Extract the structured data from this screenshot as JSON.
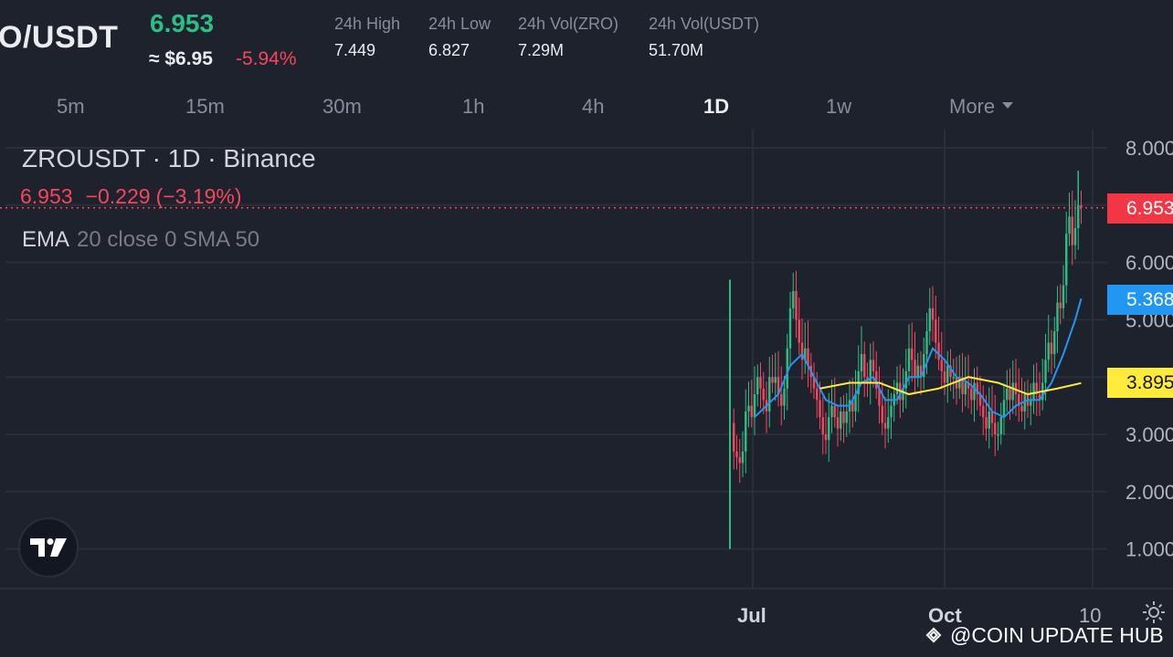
{
  "header": {
    "pair": "O/USDT",
    "last_price": "6.953",
    "usd_approx": "≈ $6.95",
    "change_pct": "-5.94%",
    "stats": [
      {
        "label": "24h High",
        "value": "7.449"
      },
      {
        "label": "24h Low",
        "value": "6.827"
      },
      {
        "label": "24h Vol(ZRO)",
        "value": "7.29M"
      },
      {
        "label": "24h Vol(USDT)",
        "value": "51.70M"
      }
    ]
  },
  "timeframes": {
    "items": [
      "5m",
      "15m",
      "30m",
      "1h",
      "4h",
      "1D",
      "1w",
      "More"
    ],
    "active": "1D"
  },
  "legend": {
    "title": "ZROUSDT · 1D · Binance",
    "price": "6.953",
    "change": "−0.229",
    "change_pct": "(−3.19%)",
    "indicator_name": "EMA",
    "indicator_args": "20 close 0 SMA 50"
  },
  "price_tags": {
    "last": "6.953",
    "ema": "5.368",
    "sma": "3.895"
  },
  "watermark": {
    "text": "@COIN UPDATE HUB",
    "icon": "binance-diamond-icon"
  },
  "icons": {
    "logo": "tradingview-logo-icon",
    "settings": "gear-icon"
  },
  "colors": {
    "up": "#2ebd85",
    "down": "#f6465d",
    "ema": "#2196f3",
    "sma": "#ffeb3b",
    "background": "#1e222d"
  },
  "chart_data": {
    "type": "candlestick",
    "symbol": "ZROUSDT",
    "interval": "1D",
    "exchange": "Binance",
    "y_ticks": [
      "8.000",
      "6.000",
      "5.000",
      "3.000",
      "2.000",
      "1.000"
    ],
    "x_ticks": [
      "Jul",
      "Oct",
      "10"
    ],
    "ylim": [
      0.3,
      8.3
    ],
    "grid": true,
    "close_path": [
      [
        0,
        3.2
      ],
      [
        1,
        2.7
      ],
      [
        2,
        2.6
      ],
      [
        3,
        2.5
      ],
      [
        4,
        2.7
      ],
      [
        5,
        3.4
      ],
      [
        6,
        3.5
      ],
      [
        7,
        3.3
      ],
      [
        8,
        3.7
      ],
      [
        9,
        4.0
      ],
      [
        10,
        3.8
      ],
      [
        11,
        3.6
      ],
      [
        12,
        3.4
      ],
      [
        13,
        4.0
      ],
      [
        14,
        3.9
      ],
      [
        15,
        4.0
      ],
      [
        16,
        3.7
      ],
      [
        17,
        3.5
      ],
      [
        18,
        3.8
      ],
      [
        19,
        4.5
      ],
      [
        20,
        5.2
      ],
      [
        21,
        5.5
      ],
      [
        22,
        5.0
      ],
      [
        23,
        4.6
      ],
      [
        24,
        4.3
      ],
      [
        25,
        4.5
      ],
      [
        26,
        4.2
      ],
      [
        27,
        4.0
      ],
      [
        28,
        3.8
      ],
      [
        29,
        3.6
      ],
      [
        30,
        3.3
      ],
      [
        31,
        3.0
      ],
      [
        32,
        2.9
      ],
      [
        33,
        3.3
      ],
      [
        34,
        3.5
      ],
      [
        35,
        3.3
      ],
      [
        36,
        3.1
      ],
      [
        37,
        3.4
      ],
      [
        38,
        3.2
      ],
      [
        39,
        3.4
      ],
      [
        40,
        3.6
      ],
      [
        41,
        3.4
      ],
      [
        42,
        3.7
      ],
      [
        43,
        4.1
      ],
      [
        44,
        4.4
      ],
      [
        45,
        4.0
      ],
      [
        46,
        3.9
      ],
      [
        47,
        4.3
      ],
      [
        48,
        4.1
      ],
      [
        49,
        3.8
      ],
      [
        50,
        3.5
      ],
      [
        51,
        3.2
      ],
      [
        52,
        3.1
      ],
      [
        53,
        3.3
      ],
      [
        54,
        3.5
      ],
      [
        55,
        3.7
      ],
      [
        56,
        3.9
      ],
      [
        57,
        3.6
      ],
      [
        58,
        3.8
      ],
      [
        59,
        4.1
      ],
      [
        60,
        4.5
      ],
      [
        61,
        4.3
      ],
      [
        62,
        4.0
      ],
      [
        63,
        4.2
      ],
      [
        64,
        4.0
      ],
      [
        65,
        4.4
      ],
      [
        66,
        4.8
      ],
      [
        67,
        5.2
      ],
      [
        68,
        5.0
      ],
      [
        69,
        4.6
      ],
      [
        70,
        4.3
      ],
      [
        71,
        4.1
      ],
      [
        72,
        3.9
      ],
      [
        73,
        4.2
      ],
      [
        74,
        4.0
      ],
      [
        75,
        4.0
      ],
      [
        76,
        3.8
      ],
      [
        77,
        4.0
      ],
      [
        78,
        3.7
      ],
      [
        79,
        3.9
      ],
      [
        80,
        3.8
      ],
      [
        81,
        3.6
      ],
      [
        82,
        3.9
      ],
      [
        83,
        3.7
      ],
      [
        84,
        3.5
      ],
      [
        85,
        3.3
      ],
      [
        86,
        3.1
      ],
      [
        87,
        3.4
      ],
      [
        88,
        3.2
      ],
      [
        89,
        3.0
      ],
      [
        90,
        3.0
      ],
      [
        91,
        3.3
      ],
      [
        92,
        3.6
      ],
      [
        93,
        3.8
      ],
      [
        94,
        3.6
      ],
      [
        95,
        3.9
      ],
      [
        96,
        3.7
      ],
      [
        97,
        3.5
      ],
      [
        98,
        3.4
      ],
      [
        99,
        3.7
      ],
      [
        100,
        3.5
      ],
      [
        101,
        3.6
      ],
      [
        102,
        3.9
      ],
      [
        103,
        3.7
      ],
      [
        104,
        3.6
      ],
      [
        105,
        3.9
      ],
      [
        106,
        4.3
      ],
      [
        107,
        4.6
      ],
      [
        108,
        4.4
      ],
      [
        109,
        4.8
      ],
      [
        110,
        5.3
      ],
      [
        111,
        5.2
      ],
      [
        112,
        5.6
      ],
      [
        113,
        6.5
      ],
      [
        114,
        6.8
      ],
      [
        115,
        6.3
      ],
      [
        116,
        6.6
      ],
      [
        117,
        7.0
      ],
      [
        118,
        6.953
      ]
    ],
    "ema20": [
      [
        8,
        3.3
      ],
      [
        12,
        3.5
      ],
      [
        16,
        3.7
      ],
      [
        20,
        4.2
      ],
      [
        24,
        4.4
      ],
      [
        28,
        4.0
      ],
      [
        32,
        3.6
      ],
      [
        36,
        3.5
      ],
      [
        40,
        3.5
      ],
      [
        44,
        3.9
      ],
      [
        48,
        4.0
      ],
      [
        52,
        3.6
      ],
      [
        56,
        3.6
      ],
      [
        60,
        4.0
      ],
      [
        64,
        4.0
      ],
      [
        68,
        4.5
      ],
      [
        72,
        4.3
      ],
      [
        76,
        4.0
      ],
      [
        80,
        3.9
      ],
      [
        84,
        3.7
      ],
      [
        88,
        3.4
      ],
      [
        92,
        3.3
      ],
      [
        96,
        3.5
      ],
      [
        100,
        3.6
      ],
      [
        104,
        3.6
      ],
      [
        108,
        3.9
      ],
      [
        112,
        4.4
      ],
      [
        116,
        5.0
      ],
      [
        118,
        5.368
      ]
    ],
    "sma50": [
      [
        30,
        3.8
      ],
      [
        40,
        3.9
      ],
      [
        50,
        3.9
      ],
      [
        60,
        3.7
      ],
      [
        70,
        3.8
      ],
      [
        80,
        4.0
      ],
      [
        90,
        3.9
      ],
      [
        100,
        3.7
      ],
      [
        110,
        3.8
      ],
      [
        118,
        3.895
      ]
    ],
    "last_price": 6.953
  }
}
